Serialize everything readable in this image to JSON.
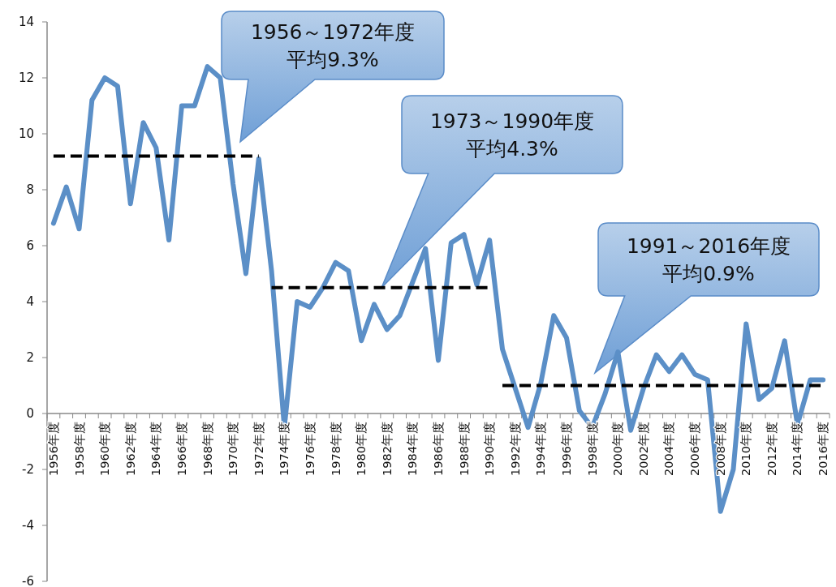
{
  "chart_data": {
    "type": "line",
    "categories": [
      "1956年度",
      null,
      "1958年度",
      null,
      "1960年度",
      null,
      "1962年度",
      null,
      "1964年度",
      null,
      "1966年度",
      null,
      "1968年度",
      null,
      "1970年度",
      null,
      "1972年度",
      null,
      "1974年度",
      null,
      "1976年度",
      null,
      "1978年度",
      null,
      "1980年度",
      null,
      "1982年度",
      null,
      "1984年度",
      null,
      "1986年度",
      null,
      "1988年度",
      null,
      "1990年度",
      null,
      "1992年度",
      null,
      "1994年度",
      null,
      "1996年度",
      null,
      "1998年度",
      null,
      "2000年度",
      null,
      "2002年度",
      null,
      "2004年度",
      null,
      "2006年度",
      null,
      "2008年度",
      null,
      "2010年度",
      null,
      "2012年度",
      null,
      "2014年度",
      null,
      "2016年度"
    ],
    "series": [
      {
        "color": "#5b8fc7",
        "values": [
          6.8,
          8.1,
          6.6,
          11.2,
          12.0,
          11.7,
          7.5,
          10.4,
          9.5,
          6.2,
          11.0,
          11.0,
          12.4,
          12.0,
          8.2,
          5.0,
          9.1,
          5.1,
          -0.5,
          4.0,
          3.8,
          4.5,
          5.4,
          5.1,
          2.6,
          3.9,
          3.0,
          3.5,
          4.7,
          5.9,
          1.9,
          6.1,
          6.4,
          4.6,
          6.2,
          2.3,
          0.9,
          -0.5,
          1.1,
          3.5,
          2.7,
          0.1,
          -0.5,
          0.7,
          2.2,
          -0.6,
          0.9,
          2.1,
          1.5,
          2.1,
          1.4,
          1.2,
          -3.5,
          -2.0,
          3.2,
          0.5,
          0.9,
          2.6,
          -0.4,
          1.2,
          1.2
        ]
      },
      {
        "color": "#000000",
        "line_style": "dashed",
        "values": [
          9.2,
          9.2,
          9.2,
          9.2,
          9.2,
          9.2,
          9.2,
          9.2,
          9.2,
          9.2,
          9.2,
          9.2,
          9.2,
          9.2,
          9.2,
          9.2,
          9.2,
          null,
          null,
          null,
          null,
          null,
          null,
          null,
          null,
          null,
          null,
          null,
          null,
          null,
          null,
          null,
          null,
          null,
          null,
          null,
          null,
          null,
          null,
          null,
          null,
          null,
          null,
          null,
          null,
          null,
          null,
          null,
          null,
          null,
          null,
          null,
          null,
          null,
          null,
          null,
          null,
          null,
          null,
          null,
          null
        ]
      },
      {
        "color": "#000000",
        "line_style": "dashed",
        "values": [
          null,
          null,
          null,
          null,
          null,
          null,
          null,
          null,
          null,
          null,
          null,
          null,
          null,
          null,
          null,
          null,
          null,
          4.5,
          4.5,
          4.5,
          4.5,
          4.5,
          4.5,
          4.5,
          4.5,
          4.5,
          4.5,
          4.5,
          4.5,
          4.5,
          4.5,
          4.5,
          4.5,
          4.5,
          4.5,
          null,
          null,
          null,
          null,
          null,
          null,
          null,
          null,
          null,
          null,
          null,
          null,
          null,
          null,
          null,
          null,
          null,
          null,
          null,
          null,
          null,
          null,
          null,
          null,
          null,
          null
        ]
      },
      {
        "color": "#000000",
        "line_style": "dashed",
        "values": [
          null,
          null,
          null,
          null,
          null,
          null,
          null,
          null,
          null,
          null,
          null,
          null,
          null,
          null,
          null,
          null,
          null,
          null,
          null,
          null,
          null,
          null,
          null,
          null,
          null,
          null,
          null,
          null,
          null,
          null,
          null,
          null,
          null,
          null,
          null,
          1.0,
          1.0,
          1.0,
          1.0,
          1.0,
          1.0,
          1.0,
          1.0,
          1.0,
          1.0,
          1.0,
          1.0,
          1.0,
          1.0,
          1.0,
          1.0,
          1.0,
          1.0,
          1.0,
          1.0,
          1.0,
          1.0,
          1.0,
          1.0,
          1.0,
          1.0
        ]
      }
    ],
    "ylim": [
      -6,
      14
    ],
    "yticks": [
      -6,
      -4,
      -2,
      0,
      2,
      4,
      6,
      8,
      10,
      12,
      14
    ],
    "annotations": [
      "1956～1972年度平均9.3%",
      "1973～1990年度平均4.3%",
      "1991～2016年度平均0.9%"
    ]
  }
}
